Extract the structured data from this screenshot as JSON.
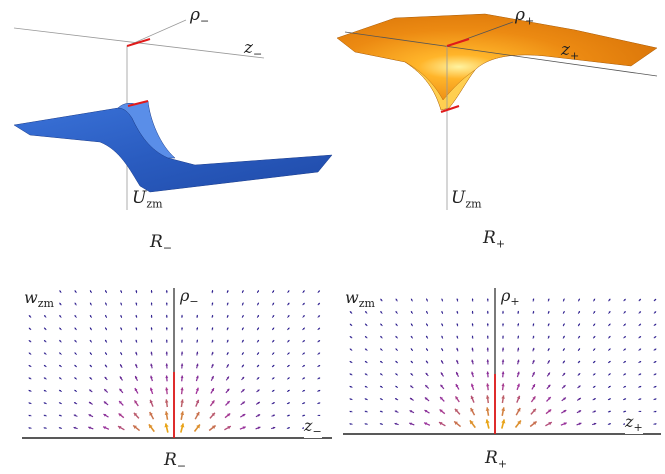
{
  "top_left": {
    "axis_rho": "ρ",
    "axis_rho_sub": "−",
    "axis_z": "z",
    "axis_z_sub": "−",
    "axis_u": "U",
    "axis_u_sub": "zm",
    "caption": "R",
    "caption_sub": "−",
    "surface_color": "#2f64c8"
  },
  "top_right": {
    "axis_rho": "ρ",
    "axis_rho_sub": "+",
    "axis_z": "z",
    "axis_z_sub": "+",
    "axis_u": "U",
    "axis_u_sub": "zm",
    "caption": "R",
    "caption_sub": "+",
    "surface_color": "#e8840e"
  },
  "bottom_left": {
    "axis_w": "w",
    "axis_w_sub": "zm",
    "axis_rho": "ρ",
    "axis_rho_sub": "−",
    "axis_z": "z",
    "axis_z_sub": "−",
    "caption": "R",
    "caption_sub": "−"
  },
  "bottom_right": {
    "axis_w": "w",
    "axis_w_sub": "zm",
    "axis_rho": "ρ",
    "axis_rho_sub": "+",
    "axis_z": "z",
    "axis_z_sub": "+",
    "caption": "R",
    "caption_sub": "+"
  },
  "colors": {
    "arrow_weak": "#2a1b8c",
    "arrow_mid": "#a0309a",
    "arrow_strong": "#f5b800",
    "axis_red": "#e01a1a"
  }
}
